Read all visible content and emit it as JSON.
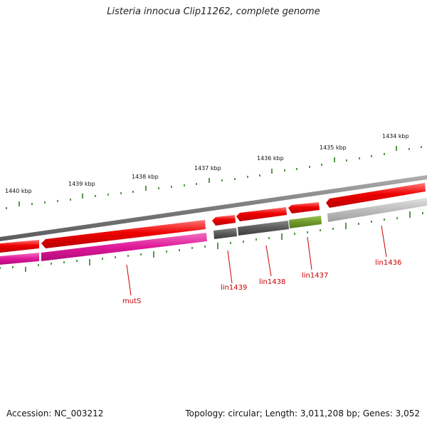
{
  "header": {
    "title": "Listeria innocua Clip11262, complete genome"
  },
  "footer": {
    "accession": "Accession: NC_003212",
    "summary": "Topology: circular; Length: 3,011,208 bp; Genes: 3,052"
  },
  "ruler": {
    "labels": [
      "1440 kbp",
      "1439 kbp",
      "1438 kbp",
      "1437 kbp",
      "1436 kbp",
      "1435 kbp",
      "1434 kbp"
    ]
  },
  "genes": [
    {
      "name": "mutS"
    },
    {
      "name": "lin1439"
    },
    {
      "name": "lin1438"
    },
    {
      "name": "lin1437"
    },
    {
      "name": "lin1436"
    }
  ],
  "colors": {
    "backbone": "#808080",
    "cds": "#ee0000",
    "ruler_ticks": "#2e7d1e",
    "pink_feature": "#e0189a",
    "dark_grey_feature": "#5a5a5a",
    "green_feature": "#6f9a2a",
    "light_grey_feature": "#bdbdbd",
    "gene_label": "#cc0000"
  }
}
